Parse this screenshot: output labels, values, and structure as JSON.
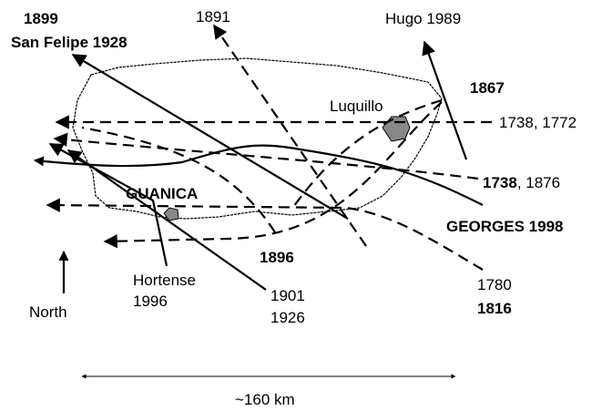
{
  "labels": {
    "y1899": "1899",
    "san_felipe": "San Felipe 1928",
    "y1891": "1891",
    "hugo": "Hugo 1989",
    "y1867": "1867",
    "luquillo": "Luquillo",
    "y1738_1772": "1738, 1772",
    "y1738": "1738",
    "y1876": ", 1876",
    "guanica": "GUANICA",
    "georges": "GEORGES 1998",
    "y1896": "1896",
    "hortense": "Hortense",
    "hortense_year": "1996",
    "y1901": "1901",
    "y1926": "1926",
    "y1780": "1780",
    "y1816": "1816",
    "north": "North",
    "scale": "~160 km"
  }
}
